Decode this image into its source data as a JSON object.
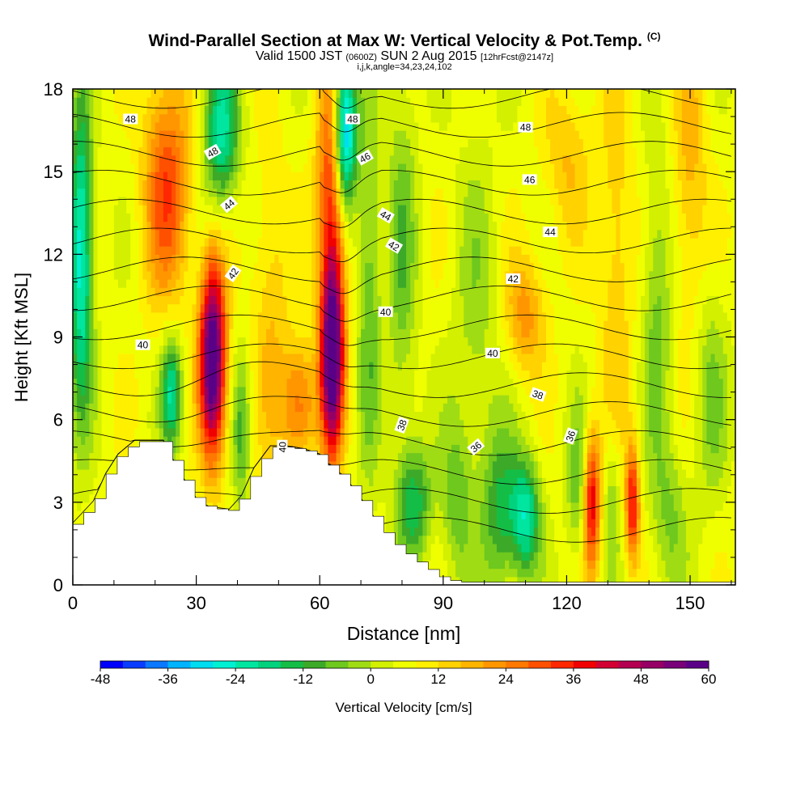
{
  "header": {
    "title": "Wind-Parallel Section at Max W: Vertical Velocity & Pot.Temp.",
    "title_mark": "(C)",
    "valid_prefix": "Valid 1500 JST",
    "valid_utc": "(0600Z)",
    "valid_date": "SUN 2 Aug 2015",
    "forecast_note": "[12hrFcst@2147z]",
    "params": "i,j,k,angle=34,23,24,102"
  },
  "chart_data": {
    "type": "heatmap",
    "xlabel": "Distance [nm]",
    "ylabel": "Height [Kft MSL]",
    "xlim": [
      0,
      161
    ],
    "ylim": [
      0,
      18
    ],
    "x_ticks": [
      0,
      30,
      60,
      90,
      120,
      150
    ],
    "y_ticks": [
      0,
      3,
      6,
      9,
      12,
      15,
      18
    ],
    "colorbar": {
      "label": "Vertical Velocity [cm/s]",
      "min": -48,
      "max": 60,
      "step": 4,
      "tick_labels": [
        -48,
        -36,
        -24,
        -12,
        0,
        12,
        24,
        36,
        48,
        60
      ],
      "colors": [
        "#0000ff",
        "#0a3cff",
        "#0a78ff",
        "#00b4ff",
        "#00dcf0",
        "#00f0d2",
        "#00e6a0",
        "#00d27d",
        "#14be46",
        "#3caa28",
        "#6ec81e",
        "#a0dc14",
        "#d2f000",
        "#f0ff00",
        "#fff000",
        "#ffd200",
        "#ffb400",
        "#ff9600",
        "#ff7800",
        "#ff5000",
        "#ff2800",
        "#f00000",
        "#d20032",
        "#b40050",
        "#960064",
        "#780078",
        "#5a0087"
      ]
    },
    "field": "vertical velocity shading (cm/s) with potential temperature contours (C)",
    "terrain": [
      [
        0,
        2.2
      ],
      [
        5,
        3
      ],
      [
        8,
        4
      ],
      [
        11,
        4.7
      ],
      [
        15,
        5.2
      ],
      [
        22,
        5.2
      ],
      [
        24,
        4.6
      ],
      [
        27,
        3.8
      ],
      [
        30,
        3.1
      ],
      [
        33,
        2.8
      ],
      [
        38,
        2.7
      ],
      [
        41,
        3.2
      ],
      [
        44,
        4.2
      ],
      [
        48,
        5
      ],
      [
        52,
        5
      ],
      [
        56,
        4.9
      ],
      [
        60,
        4.7
      ],
      [
        63,
        4.2
      ],
      [
        66,
        3.9
      ],
      [
        69,
        3.3
      ],
      [
        72,
        2.7
      ],
      [
        75,
        2
      ],
      [
        78,
        1.5
      ],
      [
        82,
        1
      ],
      [
        86,
        0.6
      ],
      [
        89,
        0.3
      ],
      [
        93,
        0.1
      ],
      [
        161,
        0.1
      ]
    ],
    "updrafts": [
      {
        "x": 2,
        "y": 12,
        "w": -34,
        "sx": 2,
        "sy": 4
      },
      {
        "x": 23,
        "y": 14.5,
        "w": 25,
        "sx": 4,
        "sy": 3
      },
      {
        "x": 34,
        "y": 8.2,
        "w": 60,
        "sx": 2.2,
        "sy": 2.5
      },
      {
        "x": 36,
        "y": 16.5,
        "w": -28,
        "sx": 3,
        "sy": 2
      },
      {
        "x": 24,
        "y": 7,
        "w": -26,
        "sx": 1.8,
        "sy": 1.5
      },
      {
        "x": 41,
        "y": 5.5,
        "w": -14,
        "sx": 1.5,
        "sy": 2
      },
      {
        "x": 48,
        "y": 10,
        "w": 10,
        "sx": 3,
        "sy": 4
      },
      {
        "x": 55,
        "y": 6.5,
        "w": 22,
        "sx": 3,
        "sy": 1.6
      },
      {
        "x": 63,
        "y": 8.5,
        "w": 60,
        "sx": 2,
        "sy": 2.6
      },
      {
        "x": 63,
        "y": 15,
        "w": 30,
        "sx": 2.5,
        "sy": 3
      },
      {
        "x": 66,
        "y": 16.5,
        "w": -48,
        "sx": 2,
        "sy": 2
      },
      {
        "x": 72,
        "y": 11,
        "w": -14,
        "sx": 2,
        "sy": 5
      },
      {
        "x": 80,
        "y": 12,
        "w": -12,
        "sx": 2.5,
        "sy": 5
      },
      {
        "x": 83,
        "y": 3,
        "w": -20,
        "sx": 3,
        "sy": 1.5
      },
      {
        "x": 93,
        "y": 3,
        "w": -12,
        "sx": 2.5,
        "sy": 2
      },
      {
        "x": 104,
        "y": 2.6,
        "w": -18,
        "sx": 3,
        "sy": 2
      },
      {
        "x": 110,
        "y": 2.5,
        "w": -28,
        "sx": 2.5,
        "sy": 1.5
      },
      {
        "x": 110,
        "y": 9.8,
        "w": 16,
        "sx": 3.5,
        "sy": 1.5
      },
      {
        "x": 126,
        "y": 3,
        "w": 36,
        "sx": 1.5,
        "sy": 1.8
      },
      {
        "x": 136,
        "y": 3,
        "w": 32,
        "sx": 1.2,
        "sy": 1.5
      },
      {
        "x": 123,
        "y": 3.5,
        "w": -14,
        "sx": 2,
        "sy": 2
      },
      {
        "x": 131,
        "y": 3,
        "w": -10,
        "sx": 1.5,
        "sy": 2
      },
      {
        "x": 145,
        "y": 2.5,
        "w": -10,
        "sx": 3,
        "sy": 2
      },
      {
        "x": 132,
        "y": 12,
        "w": 10,
        "sx": 3,
        "sy": 5
      },
      {
        "x": 142,
        "y": 10,
        "w": -12,
        "sx": 2.5,
        "sy": 4
      },
      {
        "x": 150,
        "y": 15,
        "w": 12,
        "sx": 3,
        "sy": 4
      },
      {
        "x": 155,
        "y": 7,
        "w": -10,
        "sx": 3,
        "sy": 3
      },
      {
        "x": 120,
        "y": 15.5,
        "w": 10,
        "sx": 4,
        "sy": 2
      },
      {
        "x": 98,
        "y": 9,
        "w": -8,
        "sx": 4,
        "sy": 5
      }
    ],
    "contour_labels": [
      {
        "text": "48",
        "x": 14,
        "y": 16.9,
        "angle": 0
      },
      {
        "text": "48",
        "x": 34,
        "y": 15.7,
        "angle": -30
      },
      {
        "text": "44",
        "x": 38,
        "y": 13.8,
        "angle": -40
      },
      {
        "text": "42",
        "x": 39,
        "y": 11.3,
        "angle": -55
      },
      {
        "text": "40",
        "x": 17,
        "y": 8.7,
        "angle": 0
      },
      {
        "text": "40",
        "x": 51,
        "y": 5,
        "angle": -90
      },
      {
        "text": "48",
        "x": 68,
        "y": 16.9,
        "angle": 0
      },
      {
        "text": "46",
        "x": 71,
        "y": 15.5,
        "angle": -30
      },
      {
        "text": "44",
        "x": 76,
        "y": 13.4,
        "angle": 30
      },
      {
        "text": "42",
        "x": 78,
        "y": 12.3,
        "angle": 30
      },
      {
        "text": "40",
        "x": 76,
        "y": 9.9,
        "angle": 0
      },
      {
        "text": "38",
        "x": 80,
        "y": 5.8,
        "angle": -70
      },
      {
        "text": "36",
        "x": 98,
        "y": 5,
        "angle": -40
      },
      {
        "text": "48",
        "x": 110,
        "y": 16.6,
        "angle": 0
      },
      {
        "text": "46",
        "x": 111,
        "y": 14.7,
        "angle": 0
      },
      {
        "text": "44",
        "x": 116,
        "y": 12.8,
        "angle": 0
      },
      {
        "text": "42",
        "x": 107,
        "y": 11.1,
        "angle": 0
      },
      {
        "text": "40",
        "x": 102,
        "y": 8.4,
        "angle": 0
      },
      {
        "text": "38",
        "x": 113,
        "y": 6.9,
        "angle": 20
      },
      {
        "text": "36",
        "x": 121,
        "y": 5.4,
        "angle": -70
      }
    ]
  }
}
